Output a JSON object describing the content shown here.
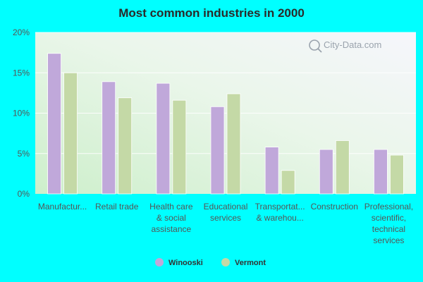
{
  "chart_data": {
    "type": "bar",
    "title": "Most common industries in 2000",
    "categories": [
      [
        "Manufactur..."
      ],
      [
        "Retail trade"
      ],
      [
        "Health care",
        "& social",
        "assistance"
      ],
      [
        "Educational",
        "services"
      ],
      [
        "Transportat...",
        "& warehou..."
      ],
      [
        "Construction"
      ],
      [
        "Professional,",
        "scientific,",
        "technical",
        "services"
      ]
    ],
    "series": [
      {
        "name": "Winooski",
        "color": "#c0a8da",
        "values": [
          17.4,
          13.9,
          13.7,
          10.8,
          5.8,
          5.5,
          5.5
        ]
      },
      {
        "name": "Vermont",
        "color": "#c4d9a6",
        "values": [
          15.0,
          11.9,
          11.6,
          12.4,
          2.9,
          6.6,
          4.8
        ]
      }
    ],
    "yticks": [
      "0%",
      "5%",
      "10%",
      "15%",
      "20%"
    ],
    "ylim": [
      0,
      20
    ],
    "grid": true,
    "legend_position": "bottom-center",
    "watermark": "City-Data.com"
  }
}
